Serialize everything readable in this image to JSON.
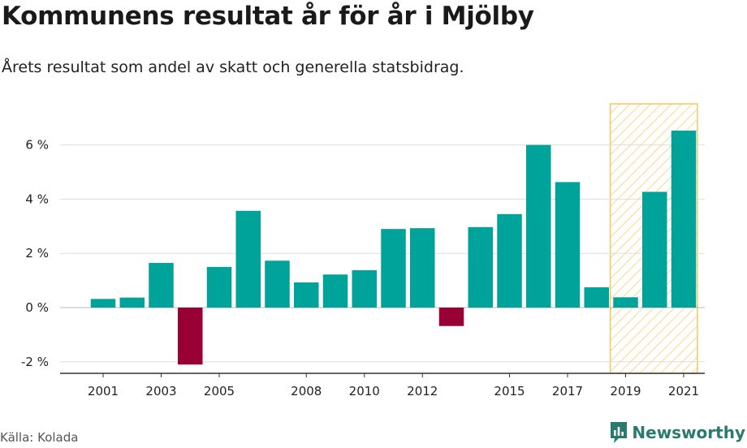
{
  "header": {
    "title": "Kommunens resultat år för år i Mjölby",
    "subtitle": "Årets resultat som andel av skatt och generella statsbidrag."
  },
  "footer": {
    "source": "Källa: Kolada",
    "brand": "Newsworthy"
  },
  "colors": {
    "positive": "#00a39a",
    "negative": "#990033",
    "highlight_stripe": "#f5c75a",
    "grid": "#dddddd",
    "axis": "#333333",
    "brand": "#2a7a6f"
  },
  "icons": {
    "brand_logo": "newsworthy-bar-chart-icon"
  },
  "chart_data": {
    "type": "bar",
    "x": [
      2001,
      2002,
      2003,
      2004,
      2005,
      2006,
      2007,
      2008,
      2009,
      2010,
      2011,
      2012,
      2013,
      2014,
      2015,
      2016,
      2017,
      2018,
      2019,
      2020,
      2021
    ],
    "values": [
      0.32,
      0.37,
      1.65,
      -2.1,
      1.5,
      3.57,
      1.73,
      0.93,
      1.22,
      1.38,
      2.9,
      2.93,
      -0.68,
      2.97,
      3.45,
      6.0,
      4.63,
      0.75,
      0.38,
      4.27,
      6.53
    ],
    "x_tick_labels": [
      "2001",
      "2003",
      "2005",
      "2008",
      "2010",
      "2012",
      "2015",
      "2017",
      "2019",
      "2021"
    ],
    "y_ticks": [
      -2,
      0,
      2,
      4,
      6
    ],
    "y_tick_labels": [
      "-2 %",
      "0 %",
      "2 %",
      "4 %",
      "6 %"
    ],
    "ylim": [
      -2.5,
      7.5
    ],
    "highlight_range": [
      2019,
      2021
    ],
    "grid": true,
    "title": "Kommunens resultat år för år i Mjölby",
    "xlabel": "",
    "ylabel": ""
  }
}
